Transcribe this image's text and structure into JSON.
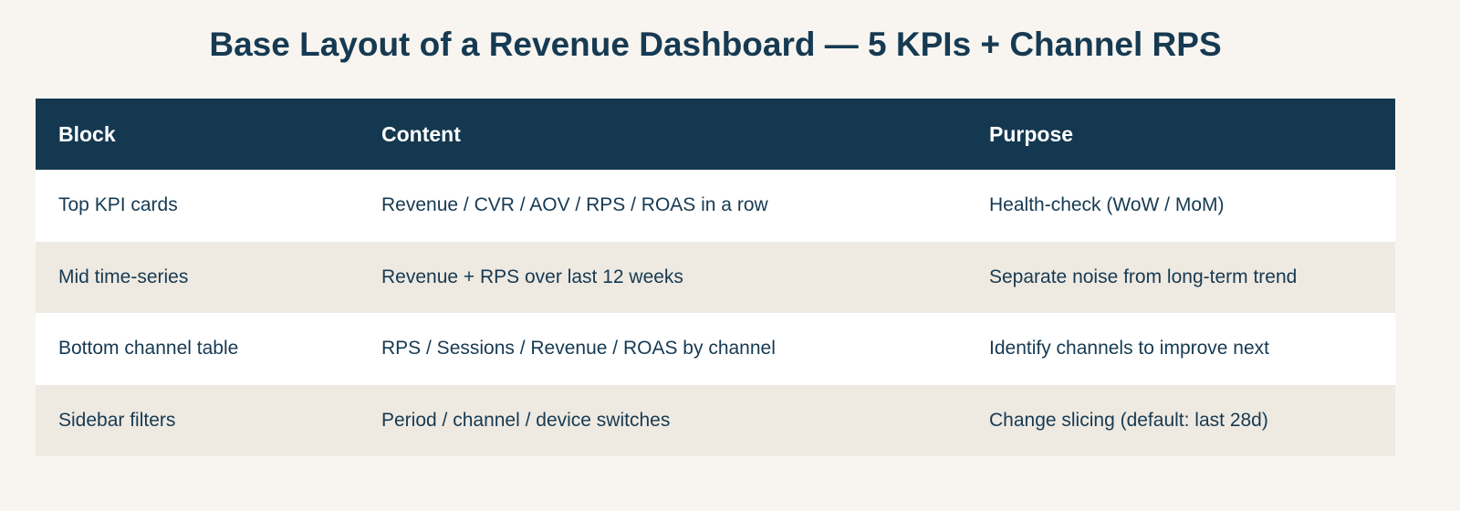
{
  "title": "Base Layout of a Revenue Dashboard — 5 KPIs + Channel RPS",
  "table": {
    "headers": [
      "Block",
      "Content",
      "Purpose"
    ],
    "rows": [
      [
        "Top KPI cards",
        "Revenue / CVR / AOV / RPS / ROAS in a row",
        "Health-check (WoW / MoM)"
      ],
      [
        "Mid time-series",
        "Revenue + RPS over last 12 weeks",
        "Separate noise from long-term trend"
      ],
      [
        "Bottom channel table",
        "RPS / Sessions / Revenue / ROAS by channel",
        "Identify channels to improve next"
      ],
      [
        "Sidebar filters",
        "Period / channel / device switches",
        "Change slicing (default: last 28d)"
      ]
    ]
  },
  "colors": {
    "header_bg": "#143850",
    "text": "#163a52",
    "stripe": "#eee9e1",
    "page_bg": "#f8f5f0"
  }
}
